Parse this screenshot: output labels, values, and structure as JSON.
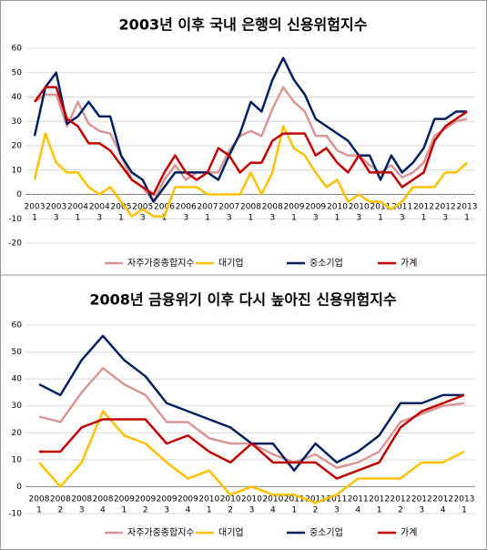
{
  "chart_data": [
    {
      "type": "line",
      "title": "2003년 이후 국내 은행의 신용위험지수",
      "categories": [
        [
          "2003",
          "1"
        ],
        null,
        [
          "2003",
          "3"
        ],
        null,
        [
          "2004",
          "1"
        ],
        null,
        [
          "2004",
          "3"
        ],
        null,
        [
          "2005",
          "1"
        ],
        null,
        [
          "2005",
          "3"
        ],
        null,
        [
          "2006",
          "1"
        ],
        null,
        [
          "2006",
          "3"
        ],
        null,
        [
          "2007",
          "1"
        ],
        null,
        [
          "2007",
          "3"
        ],
        null,
        [
          "2008",
          "1"
        ],
        null,
        [
          "2008",
          "3"
        ],
        null,
        [
          "2009",
          "1"
        ],
        null,
        [
          "2009",
          "3"
        ],
        null,
        [
          "2010",
          "1"
        ],
        null,
        [
          "2010",
          "3"
        ],
        null,
        [
          "2011",
          "1"
        ],
        null,
        [
          "2011",
          "3"
        ],
        null,
        [
          "2012",
          "1"
        ],
        null,
        [
          "2012",
          "3"
        ],
        null,
        [
          "2013",
          "1"
        ]
      ],
      "series": [
        {
          "name": "자주가중종합지수",
          "color": "#d99694",
          "values": [
            38,
            41,
            41,
            28,
            38,
            29,
            26,
            25,
            16,
            6,
            3,
            -3,
            6,
            12,
            6,
            9,
            9,
            9,
            18,
            24,
            26,
            24,
            35,
            44,
            38,
            34,
            24,
            24,
            18,
            16,
            16,
            12,
            9,
            12,
            7,
            9,
            13,
            24,
            27,
            30,
            31
          ]
        },
        {
          "name": "대기업",
          "color": "#ffc000",
          "values": [
            6,
            25,
            13,
            9,
            9,
            3,
            0,
            3,
            -3,
            -9,
            -6,
            -9,
            -9,
            3,
            3,
            3,
            0,
            0,
            0,
            0,
            9,
            0,
            9,
            28,
            19,
            16,
            9,
            3,
            6,
            -3,
            0,
            -3,
            -3,
            -6,
            -3,
            3,
            3,
            3,
            9,
            9,
            13
          ]
        },
        {
          "name": "중소기업",
          "color": "#002060",
          "values": [
            24,
            44,
            50,
            29,
            32,
            38,
            32,
            32,
            16,
            9,
            6,
            -3,
            3,
            9,
            9,
            9,
            9,
            6,
            16,
            25,
            38,
            34,
            47,
            56,
            47,
            41,
            31,
            28,
            25,
            22,
            16,
            16,
            6,
            16,
            9,
            13,
            19,
            31,
            31,
            34,
            34
          ]
        },
        {
          "name": "가계",
          "color": "#c00000",
          "values": [
            38,
            44,
            44,
            31,
            28,
            21,
            21,
            18,
            12,
            6,
            3,
            0,
            9,
            16,
            9,
            6,
            9,
            19,
            16,
            9,
            13,
            13,
            22,
            25,
            25,
            25,
            16,
            19,
            13,
            9,
            16,
            9,
            9,
            9,
            3,
            6,
            9,
            22,
            28,
            31,
            34
          ]
        }
      ],
      "ylim": [
        -20,
        60
      ],
      "yticks": [
        -20,
        -10,
        0,
        10,
        20,
        30,
        40,
        50,
        60
      ],
      "grid": true
    },
    {
      "type": "line",
      "title": "2008년 금융위기 이후 다시 높아진 신용위험지수",
      "categories": [
        [
          "2008",
          "1"
        ],
        [
          "2008",
          "2"
        ],
        [
          "2008",
          "3"
        ],
        [
          "2008",
          "4"
        ],
        [
          "2009",
          "1"
        ],
        [
          "2009",
          "2"
        ],
        [
          "2009",
          "3"
        ],
        [
          "2009",
          "4"
        ],
        [
          "2010",
          "1"
        ],
        [
          "2010",
          "2"
        ],
        [
          "2010",
          "3"
        ],
        [
          "2010",
          "4"
        ],
        [
          "2011",
          "1"
        ],
        [
          "2011",
          "2"
        ],
        [
          "2011",
          "3"
        ],
        [
          "2011",
          "4"
        ],
        [
          "2012",
          "1"
        ],
        [
          "2012",
          "2"
        ],
        [
          "2012",
          "3"
        ],
        [
          "2012",
          "4"
        ],
        [
          "2013",
          "1"
        ]
      ],
      "series": [
        {
          "name": "자주가중종합지수",
          "color": "#d99694",
          "values": [
            26,
            24,
            35,
            44,
            38,
            34,
            24,
            24,
            18,
            16,
            16,
            12,
            9,
            12,
            7,
            9,
            13,
            24,
            27,
            30,
            31
          ]
        },
        {
          "name": "대기업",
          "color": "#ffc000",
          "values": [
            9,
            0,
            9,
            28,
            19,
            16,
            9,
            3,
            6,
            -3,
            0,
            -3,
            -3,
            -6,
            -3,
            3,
            3,
            3,
            9,
            9,
            13
          ]
        },
        {
          "name": "중소기업",
          "color": "#002060",
          "values": [
            38,
            34,
            47,
            56,
            47,
            41,
            31,
            28,
            25,
            22,
            16,
            16,
            6,
            16,
            9,
            13,
            19,
            31,
            31,
            34,
            34
          ]
        },
        {
          "name": "가계",
          "color": "#c00000",
          "values": [
            13,
            13,
            22,
            25,
            25,
            25,
            16,
            19,
            13,
            9,
            16,
            9,
            9,
            9,
            3,
            6,
            9,
            22,
            28,
            31,
            34
          ]
        }
      ],
      "ylim": [
        -10,
        60
      ],
      "yticks": [
        -10,
        0,
        10,
        20,
        30,
        40,
        50,
        60
      ],
      "grid": true
    }
  ]
}
